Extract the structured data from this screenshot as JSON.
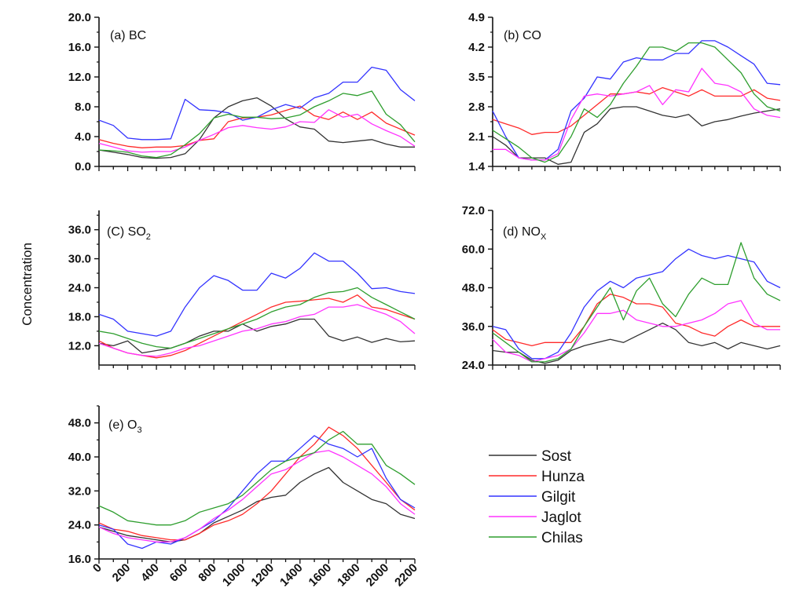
{
  "figure": {
    "ylabel": "Concentration",
    "colors": {
      "Sost": "#333333",
      "Hunza": "#ff2a2a",
      "Gilgit": "#3333ff",
      "Jaglot": "#ff33ff",
      "Chilas": "#2e9e2e"
    }
  },
  "chart_data": [
    {
      "type": "line",
      "title": "(a) BC",
      "x": [
        0,
        100,
        200,
        300,
        400,
        500,
        600,
        700,
        800,
        900,
        1000,
        1100,
        1200,
        1300,
        1400,
        1500,
        1600,
        1700,
        1800,
        1900,
        2000,
        2100,
        2200
      ],
      "ylim": [
        0,
        20
      ],
      "yticks": [
        "0.0",
        "4.0",
        "8.0",
        "12.0",
        "16.0",
        "20.0"
      ],
      "series": [
        {
          "name": "Sost",
          "values": [
            2.2,
            1.9,
            1.6,
            1.2,
            1.1,
            1.2,
            1.7,
            3.6,
            6.5,
            8,
            8.8,
            9.2,
            8.1,
            6.4,
            5.3,
            5,
            3.4,
            3.2,
            3.4,
            3.6,
            3,
            2.6,
            2.6
          ]
        },
        {
          "name": "Hunza",
          "values": [
            3.6,
            3.1,
            2.7,
            2.5,
            2.6,
            2.6,
            2.8,
            3.5,
            3.7,
            6,
            6.5,
            6.6,
            6.9,
            7.5,
            8.1,
            6.8,
            6.3,
            7.3,
            6.3,
            7.3,
            5.8,
            5,
            4.2
          ]
        },
        {
          "name": "Gilgit",
          "values": [
            6.2,
            5.5,
            3.8,
            3.6,
            3.6,
            3.7,
            9,
            7.6,
            7.5,
            7.2,
            6.2,
            6.6,
            7.6,
            8.3,
            7.8,
            9.2,
            9.8,
            11.3,
            11.3,
            13.3,
            12.9,
            10.3,
            8.8
          ]
        },
        {
          "name": "Jaglot",
          "values": [
            3.1,
            2.6,
            2.1,
            1.9,
            2,
            2,
            2.6,
            3.5,
            4.3,
            5.2,
            5.5,
            5.2,
            5,
            5.3,
            6,
            5.9,
            7.6,
            6.6,
            7,
            5.7,
            4.8,
            4,
            2.7
          ]
        },
        {
          "name": "Chilas",
          "values": [
            2.2,
            2.1,
            1.9,
            1.4,
            1.2,
            1.6,
            2.9,
            4.4,
            6.5,
            7,
            6.6,
            6.6,
            6.4,
            6.5,
            6.9,
            8,
            8.8,
            9.8,
            9.5,
            10.1,
            7,
            5.6,
            3.3
          ]
        }
      ]
    },
    {
      "type": "line",
      "title": "(b) CO",
      "x": [
        0,
        100,
        200,
        300,
        400,
        500,
        600,
        700,
        800,
        900,
        1000,
        1100,
        1200,
        1300,
        1400,
        1500,
        1600,
        1700,
        1800,
        1900,
        2000,
        2100,
        2200
      ],
      "ylim": [
        1.4,
        4.9
      ],
      "yticks": [
        "1.4",
        "2.1",
        "2.8",
        "3.5",
        "4.2",
        "4.9"
      ],
      "series": [
        {
          "name": "Sost",
          "values": [
            2.1,
            1.9,
            1.6,
            1.6,
            1.6,
            1.45,
            1.5,
            2.2,
            2.4,
            2.75,
            2.8,
            2.8,
            2.7,
            2.6,
            2.55,
            2.62,
            2.35,
            2.45,
            2.5,
            2.58,
            2.65,
            2.7,
            2.75
          ]
        },
        {
          "name": "Hunza",
          "values": [
            2.5,
            2.4,
            2.3,
            2.15,
            2.2,
            2.2,
            2.35,
            2.6,
            2.85,
            3.1,
            3.1,
            3.15,
            3.1,
            3.25,
            3.15,
            3.05,
            3.2,
            3.05,
            3.05,
            3.05,
            3.2,
            3,
            2.95
          ]
        },
        {
          "name": "Gilgit",
          "values": [
            2.7,
            2.1,
            1.6,
            1.55,
            1.55,
            1.8,
            2.7,
            3,
            3.5,
            3.45,
            3.85,
            3.95,
            3.9,
            3.9,
            4.05,
            4.05,
            4.35,
            4.35,
            4.2,
            4,
            3.8,
            3.35,
            3.32
          ]
        },
        {
          "name": "Jaglot",
          "values": [
            1.8,
            1.8,
            1.6,
            1.55,
            1.55,
            1.7,
            2.5,
            3.05,
            3.1,
            3.05,
            3.1,
            3.15,
            3.3,
            2.85,
            3.2,
            3.15,
            3.7,
            3.35,
            3.3,
            3.15,
            2.75,
            2.6,
            2.55
          ]
        },
        {
          "name": "Chilas",
          "values": [
            2.25,
            2.05,
            1.85,
            1.6,
            1.5,
            1.65,
            2.1,
            2.75,
            2.55,
            2.85,
            3.35,
            3.75,
            4.2,
            4.2,
            4.1,
            4.3,
            4.3,
            4.2,
            3.9,
            3.6,
            3.1,
            2.8,
            2.7
          ]
        }
      ]
    },
    {
      "type": "line",
      "title": "(C) SO2",
      "x": [
        0,
        100,
        200,
        300,
        400,
        500,
        600,
        700,
        800,
        900,
        1000,
        1100,
        1200,
        1300,
        1400,
        1500,
        1600,
        1700,
        1800,
        1900,
        2000,
        2100,
        2200
      ],
      "ylim": [
        8,
        40
      ],
      "yticks": [
        "12.0",
        "18.0",
        "24.0",
        "30.0",
        "36.0"
      ],
      "series": [
        {
          "name": "Sost",
          "values": [
            12.5,
            12,
            13,
            10.5,
            11,
            11.5,
            12.5,
            14,
            15,
            15,
            16.5,
            15,
            16,
            16.5,
            17.5,
            17.5,
            14,
            13,
            13.8,
            12.7,
            13.5,
            12.8,
            13
          ]
        },
        {
          "name": "Hunza",
          "values": [
            13,
            11.5,
            10.5,
            10,
            9.5,
            10,
            11,
            12.5,
            14,
            15.5,
            17,
            18.5,
            20,
            21,
            21.2,
            21.5,
            21.8,
            21,
            22.5,
            20,
            19.5,
            18.5,
            17.5
          ]
        },
        {
          "name": "Gilgit",
          "values": [
            18.5,
            17.5,
            15,
            14.5,
            14,
            15,
            20,
            24,
            26.5,
            25.5,
            23.5,
            23.5,
            27,
            26,
            28,
            31.2,
            29.5,
            29.5,
            27,
            23.8,
            24,
            23.2,
            22.8
          ]
        },
        {
          "name": "Jaglot",
          "values": [
            12.5,
            11.5,
            10.5,
            10,
            9.8,
            10.5,
            11.5,
            12,
            13,
            14,
            15,
            15.5,
            16.5,
            17,
            18,
            18.5,
            20,
            20,
            20.5,
            19.5,
            18.5,
            17,
            14.5
          ]
        },
        {
          "name": "Chilas",
          "values": [
            15,
            14.5,
            13.5,
            12.5,
            11.8,
            11.5,
            12.5,
            13.5,
            14.5,
            15.5,
            16.5,
            17.5,
            19,
            20,
            20.5,
            22,
            23,
            23.2,
            24,
            22,
            20.5,
            19,
            17.5
          ]
        }
      ]
    },
    {
      "type": "line",
      "title": "(d) NOx",
      "x": [
        0,
        100,
        200,
        300,
        400,
        500,
        600,
        700,
        800,
        900,
        1000,
        1100,
        1200,
        1300,
        1400,
        1500,
        1600,
        1700,
        1800,
        1900,
        2000,
        2100,
        2200
      ],
      "ylim": [
        24,
        72
      ],
      "yticks": [
        "24.0",
        "36.0",
        "48.0",
        "60.0",
        "72.0"
      ],
      "series": [
        {
          "name": "Sost",
          "values": [
            28.5,
            28,
            28,
            25.5,
            24.5,
            25.5,
            28.5,
            30,
            31,
            32,
            31,
            33,
            35,
            37,
            35,
            31,
            30,
            31,
            29,
            31,
            30,
            29,
            30
          ]
        },
        {
          "name": "Hunza",
          "values": [
            35,
            32,
            31,
            30,
            31,
            31,
            31,
            36,
            43,
            46,
            45,
            43,
            43,
            42,
            37,
            36,
            34,
            33,
            36,
            38,
            36,
            36,
            36
          ]
        },
        {
          "name": "Gilgit",
          "values": [
            36,
            35,
            29,
            26,
            26,
            28,
            34,
            42,
            47,
            50,
            48,
            51,
            52,
            53,
            57,
            60,
            58,
            57,
            58,
            57,
            56,
            50,
            48
          ]
        },
        {
          "name": "Jaglot",
          "values": [
            32,
            28,
            27,
            25,
            26,
            27,
            29,
            34,
            40,
            40,
            41,
            38,
            37,
            36,
            36,
            37,
            38,
            40,
            43,
            44,
            37,
            35,
            35
          ]
        },
        {
          "name": "Chilas",
          "values": [
            34,
            31,
            28,
            25,
            25,
            26,
            29,
            36,
            42,
            48,
            38,
            47,
            51,
            43,
            39,
            46,
            51,
            49,
            49,
            62,
            51,
            46,
            44
          ]
        }
      ]
    },
    {
      "type": "line",
      "title": "(e) O3",
      "x": [
        0,
        100,
        200,
        300,
        400,
        500,
        600,
        700,
        800,
        900,
        1000,
        1100,
        1200,
        1300,
        1400,
        1500,
        1600,
        1700,
        1800,
        1900,
        2000,
        2100,
        2200
      ],
      "ylim": [
        16,
        52
      ],
      "yticks": [
        "16.0",
        "24.0",
        "32.0",
        "40.0",
        "48.0"
      ],
      "series": [
        {
          "name": "Sost",
          "values": [
            23.5,
            22.5,
            21.5,
            21,
            20.5,
            20,
            20.5,
            22,
            24.5,
            26,
            27.5,
            29.5,
            30.5,
            31,
            34,
            36,
            37.5,
            34,
            32,
            30,
            29,
            26.5,
            25.5
          ]
        },
        {
          "name": "Hunza",
          "values": [
            24.5,
            23,
            22.5,
            21.5,
            21,
            20.5,
            20.5,
            22,
            24,
            25,
            26.5,
            29,
            32,
            36,
            40,
            43,
            47,
            45,
            42,
            38,
            34,
            30,
            27.5
          ]
        },
        {
          "name": "Gilgit",
          "values": [
            24,
            23,
            19.5,
            18.5,
            20,
            19.5,
            21,
            23,
            25,
            28,
            32,
            36,
            39,
            39,
            42,
            45,
            43,
            42,
            40,
            42,
            35,
            30,
            28
          ]
        },
        {
          "name": "Jaglot",
          "values": [
            23.5,
            22,
            21,
            20.5,
            20,
            20,
            21,
            23,
            25.5,
            27.5,
            30,
            33,
            36,
            37,
            39,
            41,
            41.5,
            40,
            38,
            36,
            33,
            29,
            26.5
          ]
        },
        {
          "name": "Chilas",
          "values": [
            28.5,
            27,
            25,
            24.5,
            24,
            24,
            25,
            27,
            28,
            29,
            31,
            34,
            37,
            39,
            40,
            41,
            44,
            46,
            43,
            43,
            38,
            36,
            33.5
          ]
        }
      ]
    }
  ],
  "xaxis": {
    "ticks": [
      "0",
      "200",
      "400",
      "600",
      "800",
      "1000",
      "1200",
      "1400",
      "1600",
      "1800",
      "2000",
      "2200"
    ]
  },
  "legend": [
    {
      "name": "Sost",
      "label": "Sost"
    },
    {
      "name": "Hunza",
      "label": "Hunza"
    },
    {
      "name": "Gilgit",
      "label": "Gilgit"
    },
    {
      "name": "Jaglot",
      "label": "Jaglot"
    },
    {
      "name": "Chilas",
      "label": "Chilas"
    }
  ]
}
